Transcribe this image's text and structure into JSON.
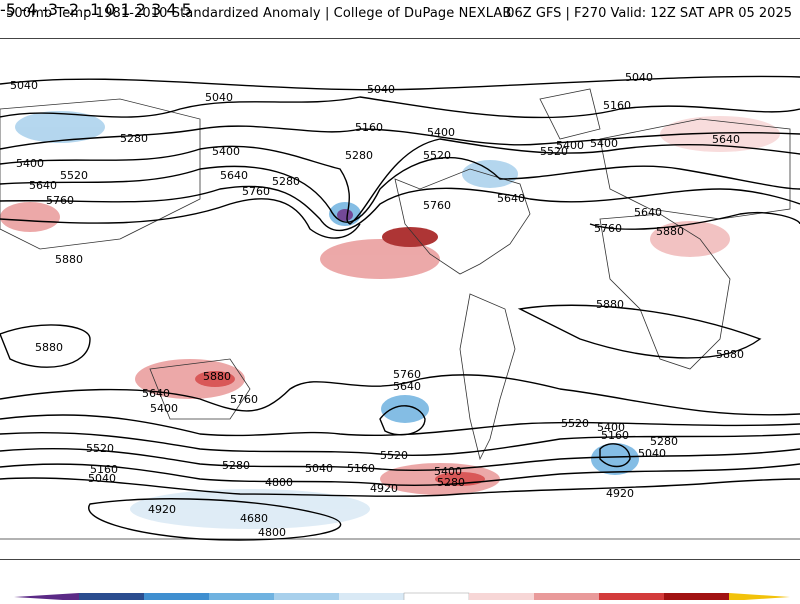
{
  "header": {
    "left_title": "500mb Temp 1981-2010 Standardized Anomaly | College of DuPage NEXLAB",
    "right_title": "06Z GFS | F270 Valid: 12Z SAT APR 05 2025"
  },
  "contour_labels": [
    "5040",
    "5040",
    "5040",
    "5040",
    "5160",
    "5160",
    "5400",
    "5280",
    "5400",
    "5520",
    "5400",
    "5400",
    "5280",
    "5640",
    "5400",
    "5520",
    "5640",
    "5280",
    "5520",
    "5760",
    "5760",
    "5640",
    "5640",
    "5880",
    "5760",
    "5880",
    "5880",
    "5880",
    "5880",
    "5760",
    "5640",
    "5400",
    "5760",
    "5640",
    "5880",
    "5760",
    "5640",
    "5520",
    "5400",
    "5160",
    "5280",
    "5040",
    "5520",
    "5160",
    "5040",
    "5280",
    "5040",
    "5160",
    "5520",
    "5400",
    "5280",
    "4920",
    "4800",
    "4920",
    "4920",
    "4680",
    "4800"
  ],
  "colorbar": {
    "ticks": [
      "-5",
      "-4",
      "-3",
      "-2",
      "-1",
      "0",
      "1",
      "2",
      "3",
      "4",
      "5"
    ],
    "colors": [
      "#5b2a86",
      "#2a4d8f",
      "#3f8fd0",
      "#6fb2e0",
      "#a8d0ec",
      "#d9e9f5",
      "#ffffff",
      "#f7d6d6",
      "#e99a9a",
      "#d33b3b",
      "#a11212",
      "#6b0000",
      "#f2c20a"
    ]
  }
}
